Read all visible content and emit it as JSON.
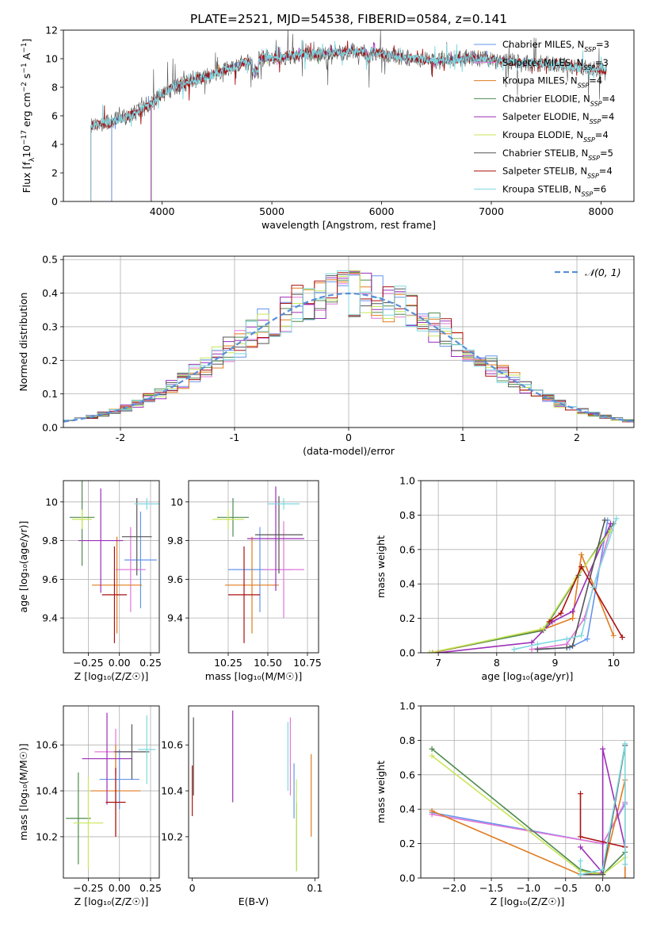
{
  "figure": {
    "title": "PLATE=2521, MJD=54538, FIBERID=0584, z=0.141"
  },
  "colors": {
    "Chabrier MILES": "#6495ed",
    "Salpeter MILES": "#e078d8",
    "Kroupa MILES": "#e07b20",
    "Chabrier ELODIE": "#4f8a4f",
    "Salpeter ELODIE": "#9b2fb8",
    "Kroupa ELODIE": "#c8e65a",
    "Chabrier STELIB": "#555555",
    "Salpeter STELIB": "#aa1111",
    "Kroupa STELIB": "#7ed8e0",
    "normal_curve": "#5b8fd8",
    "grid": "#b0b0b0"
  },
  "chart_data": [
    {
      "id": "spectrum",
      "type": "line",
      "xlabel": "wavelength [Angstrom, rest frame]",
      "ylabel_parts": [
        "Flux [f",
        "λ",
        "10",
        "−17",
        " erg cm",
        "−2",
        " s",
        "−1",
        " A",
        "−1",
        "]"
      ],
      "xlim": [
        3100,
        8300
      ],
      "ylim": [
        0,
        12
      ],
      "xticks": [
        4000,
        5000,
        6000,
        7000,
        8000
      ],
      "yticks": [
        0,
        2,
        4,
        6,
        8,
        10,
        12
      ],
      "grid": false,
      "legend_position": "top-right",
      "legend": [
        {
          "name": "Chabrier MILES",
          "nssp": "3"
        },
        {
          "name": "Salpeter MILES",
          "nssp": "3"
        },
        {
          "name": "Kroupa MILES",
          "nssp": "4"
        },
        {
          "name": "Chabrier ELODIE",
          "nssp": "4"
        },
        {
          "name": "Salpeter ELODIE",
          "nssp": "4"
        },
        {
          "name": "Kroupa ELODIE",
          "nssp": "4"
        },
        {
          "name": "Chabrier STELIB",
          "nssp": "5"
        },
        {
          "name": "Salpeter STELIB",
          "nssp": "4"
        },
        {
          "name": "Kroupa STELIB",
          "nssp": "6"
        }
      ],
      "continuum": {
        "x": [
          3350,
          3500,
          3700,
          3900,
          4000,
          4100,
          4300,
          4500,
          4700,
          4900,
          5100,
          5300,
          5500,
          5700,
          5900,
          6100,
          6300,
          6500,
          6700,
          6900,
          7100,
          7300,
          7500,
          7700,
          7900,
          8050
        ],
        "y": [
          5.3,
          5.5,
          6.0,
          6.8,
          7.5,
          8.0,
          8.5,
          9.0,
          9.6,
          10.0,
          10.1,
          10.3,
          10.4,
          10.5,
          10.5,
          10.2,
          10.0,
          9.8,
          10.0,
          10.0,
          9.9,
          9.7,
          9.7,
          9.5,
          9.3,
          9.2
        ]
      }
    },
    {
      "id": "residual_hist",
      "type": "bar",
      "xlabel": "(data-model)/error",
      "ylabel": "Normed distribution",
      "xlim": [
        -2.5,
        2.5
      ],
      "ylim": [
        0,
        0.51
      ],
      "xticks": [
        -2,
        -1,
        0,
        1,
        2
      ],
      "yticks": [
        0.0,
        0.1,
        0.2,
        0.3,
        0.4,
        0.5
      ],
      "grid": true,
      "legend_position": "top-right",
      "legend_label": "𝒩(0, 1)",
      "bin_width": 0.1
    },
    {
      "id": "age_vs_Z",
      "type": "scatter",
      "xlabel": "Z [log₁₀(Z/Z☉)]",
      "ylabel": "age  [log₁₀(age/yr)]",
      "xlim": [
        -0.45,
        0.32
      ],
      "ylim": [
        9.22,
        10.11
      ],
      "xticks": [
        -0.25,
        0.0,
        0.25
      ],
      "xticklabels": [
        "−0.25",
        "0.00",
        "0.25"
      ],
      "yticks": [
        9.4,
        9.6,
        9.8,
        10.0
      ],
      "grid": true,
      "series": [
        {
          "name": "Chabrier MILES",
          "x": 0.17,
          "xerr": 0.13,
          "y": 9.7,
          "yerr": 0.25
        },
        {
          "name": "Salpeter MILES",
          "x": 0.09,
          "xerr": 0.12,
          "y": 9.65,
          "yerr": 0.22
        },
        {
          "name": "Kroupa MILES",
          "x": -0.02,
          "xerr": 0.2,
          "y": 9.57,
          "yerr": 0.25
        },
        {
          "name": "Chabrier ELODIE",
          "x": -0.3,
          "xerr": 0.1,
          "y": 9.92,
          "yerr": 0.25
        },
        {
          "name": "Salpeter ELODIE",
          "x": -0.15,
          "xerr": 0.18,
          "y": 9.8,
          "yerr": 0.27
        },
        {
          "name": "Kroupa ELODIE",
          "x": -0.3,
          "xerr": 0.08,
          "y": 9.91,
          "yerr": 0.05
        },
        {
          "name": "Chabrier STELIB",
          "x": 0.14,
          "xerr": 0.12,
          "y": 9.82,
          "yerr": 0.2
        },
        {
          "name": "Salpeter STELIB",
          "x": -0.04,
          "xerr": 0.1,
          "y": 9.52,
          "yerr": 0.25
        },
        {
          "name": "Kroupa STELIB",
          "x": 0.22,
          "xerr": 0.1,
          "y": 9.99,
          "yerr": 0.03
        }
      ]
    },
    {
      "id": "age_vs_mass",
      "type": "scatter",
      "xlabel": "mass [log₁₀(M/M☉)]",
      "xlim": [
        10.0,
        10.82
      ],
      "ylim": [
        9.22,
        10.11
      ],
      "xticks": [
        10.25,
        10.5,
        10.75
      ],
      "xticklabels": [
        "10.25",
        "10.50",
        "10.75"
      ],
      "yticks": [
        9.4,
        9.6,
        9.8,
        10.0
      ],
      "grid": true,
      "series": [
        {
          "name": "Chabrier MILES",
          "x": 10.45,
          "xerr": 0.2,
          "y": 9.65,
          "yerr": 0.22
        },
        {
          "name": "Salpeter MILES",
          "x": 10.6,
          "xerr": 0.13,
          "y": 9.65,
          "yerr": 0.25
        },
        {
          "name": "Kroupa MILES",
          "x": 10.4,
          "xerr": 0.17,
          "y": 9.57,
          "yerr": 0.25
        },
        {
          "name": "Chabrier ELODIE",
          "x": 10.28,
          "xerr": 0.1,
          "y": 9.92,
          "yerr": 0.1
        },
        {
          "name": "Salpeter ELODIE",
          "x": 10.55,
          "xerr": 0.18,
          "y": 9.81,
          "yerr": 0.27
        },
        {
          "name": "Kroupa ELODIE",
          "x": 10.25,
          "xerr": 0.1,
          "y": 9.91,
          "yerr": 0.05
        },
        {
          "name": "Chabrier STELIB",
          "x": 10.57,
          "xerr": 0.15,
          "y": 9.83,
          "yerr": 0.2
        },
        {
          "name": "Salpeter STELIB",
          "x": 10.35,
          "xerr": 0.1,
          "y": 9.52,
          "yerr": 0.25
        },
        {
          "name": "Kroupa STELIB",
          "x": 10.6,
          "xerr": 0.1,
          "y": 9.99,
          "yerr": 0.03
        }
      ]
    },
    {
      "id": "massweight_vs_age",
      "type": "line",
      "xlabel": "age  [log₁₀(age/yr)]",
      "ylabel": "mass weight",
      "xlim": [
        6.7,
        10.35
      ],
      "ylim": [
        0,
        1.0
      ],
      "xticks": [
        7,
        8,
        9,
        10
      ],
      "yticks": [
        0.0,
        0.2,
        0.4,
        0.6,
        0.8,
        1.0
      ],
      "grid": true,
      "series": [
        {
          "name": "Chabrier MILES",
          "x": [
            8.7,
            9.25,
            9.55,
            9.9
          ],
          "y": [
            0.02,
            0.03,
            0.08,
            0.77
          ]
        },
        {
          "name": "Salpeter MILES",
          "x": [
            8.6,
            9.2,
            9.5,
            9.95
          ],
          "y": [
            0.02,
            0.05,
            0.2,
            0.72
          ]
        },
        {
          "name": "Kroupa MILES",
          "x": [
            6.9,
            8.75,
            9.3,
            9.45,
            10.0
          ],
          "y": [
            0.0,
            0.13,
            0.2,
            0.57,
            0.1
          ]
        },
        {
          "name": "Chabrier ELODIE",
          "x": [
            6.85,
            8.8,
            9.4,
            10.0
          ],
          "y": [
            0.0,
            0.13,
            0.45,
            0.75
          ]
        },
        {
          "name": "Salpeter ELODIE",
          "x": [
            7.0,
            8.6,
            8.95,
            9.3,
            9.95
          ],
          "y": [
            0.0,
            0.06,
            0.18,
            0.24,
            0.75
          ]
        },
        {
          "name": "Kroupa ELODIE",
          "x": [
            6.85,
            8.8,
            9.35,
            9.95
          ],
          "y": [
            0.0,
            0.14,
            0.43,
            0.71
          ]
        },
        {
          "name": "Chabrier STELIB",
          "x": [
            8.7,
            9.2,
            9.3,
            9.85
          ],
          "y": [
            0.02,
            0.03,
            0.04,
            0.77
          ]
        },
        {
          "name": "Salpeter STELIB",
          "x": [
            8.9,
            9.1,
            9.45,
            10.15
          ],
          "y": [
            0.18,
            0.23,
            0.5,
            0.09
          ]
        },
        {
          "name": "Kroupa STELIB",
          "x": [
            8.3,
            8.7,
            9.2,
            9.45,
            9.65,
            10.05
          ],
          "y": [
            0.02,
            0.05,
            0.08,
            0.1,
            0.38,
            0.78
          ]
        }
      ]
    },
    {
      "id": "mass_vs_Z",
      "type": "scatter",
      "xlabel": "Z [log₁₀(Z/Z☉)]",
      "ylabel": "mass [log₁₀(M/M☉)]",
      "xlim": [
        -0.45,
        0.32
      ],
      "ylim": [
        10.02,
        10.77
      ],
      "xticks": [
        -0.25,
        0.0,
        0.25
      ],
      "xticklabels": [
        "−0.25",
        "0.00",
        "0.25"
      ],
      "yticks": [
        10.2,
        10.4,
        10.6
      ],
      "grid": true,
      "series": [
        {
          "name": "Chabrier MILES",
          "x": 0.0,
          "xerr": 0.16,
          "y": 10.45,
          "yerr": 0.13
        },
        {
          "name": "Salpeter MILES",
          "x": -0.03,
          "xerr": 0.17,
          "y": 10.57,
          "yerr": 0.1
        },
        {
          "name": "Kroupa MILES",
          "x": -0.03,
          "xerr": 0.2,
          "y": 10.4,
          "yerr": 0.2
        },
        {
          "name": "Chabrier ELODIE",
          "x": -0.33,
          "xerr": 0.1,
          "y": 10.28,
          "yerr": 0.2
        },
        {
          "name": "Salpeter ELODIE",
          "x": -0.1,
          "xerr": 0.2,
          "y": 10.54,
          "yerr": 0.2
        },
        {
          "name": "Kroupa ELODIE",
          "x": -0.25,
          "xerr": 0.12,
          "y": 10.26,
          "yerr": 0.2
        },
        {
          "name": "Chabrier STELIB",
          "x": 0.1,
          "xerr": 0.14,
          "y": 10.57,
          "yerr": 0.12
        },
        {
          "name": "Salpeter STELIB",
          "x": -0.03,
          "xerr": 0.08,
          "y": 10.35,
          "yerr": 0.15
        },
        {
          "name": "Kroupa STELIB",
          "x": 0.22,
          "xerr": 0.07,
          "y": 10.58,
          "yerr": 0.15
        }
      ]
    },
    {
      "id": "mass_vs_ebv",
      "type": "scatter",
      "xlabel": "E(B-V)",
      "xlim": [
        -0.003,
        0.103
      ],
      "ylim": [
        10.02,
        10.77
      ],
      "xticks": [
        0.0,
        0.1
      ],
      "yticks": [
        10.2,
        10.4,
        10.6
      ],
      "grid": false,
      "series": [
        {
          "name": "Chabrier MILES",
          "x": 0.083,
          "y": 10.4,
          "yerr": 0.12
        },
        {
          "name": "Salpeter MILES",
          "x": 0.08,
          "y": 10.55,
          "yerr": 0.17
        },
        {
          "name": "Kroupa MILES",
          "x": 0.097,
          "y": 10.38,
          "yerr": 0.18
        },
        {
          "name": "Chabrier ELODIE",
          "x": 0.085,
          "y": 10.2,
          "yerr": 0.15
        },
        {
          "name": "Salpeter ELODIE",
          "x": 0.033,
          "y": 10.55,
          "yerr": 0.2
        },
        {
          "name": "Kroupa ELODIE",
          "x": 0.085,
          "y": 10.25,
          "yerr": 0.2
        },
        {
          "name": "Chabrier STELIB",
          "x": 0.001,
          "y": 10.55,
          "yerr": 0.17
        },
        {
          "name": "Salpeter STELIB",
          "x": 0.0,
          "y": 10.4,
          "yerr": 0.11
        },
        {
          "name": "Kroupa STELIB",
          "x": 0.078,
          "y": 10.55,
          "yerr": 0.15
        }
      ]
    },
    {
      "id": "massweight_vs_Z",
      "type": "line",
      "xlabel": "Z [log₁₀(Z/Z☉)]",
      "ylabel": "mass weight",
      "xlim": [
        -2.45,
        0.42
      ],
      "ylim": [
        0,
        1.0
      ],
      "xticks": [
        -2.0,
        -1.5,
        -1.0,
        -0.5,
        0.0
      ],
      "xticklabels": [
        "−2.0",
        "−1.5",
        "−1.0",
        "−0.5",
        "0.0"
      ],
      "yticks": [
        0.0,
        0.2,
        0.4,
        0.6,
        0.8,
        1.0
      ],
      "grid": true,
      "series": [
        {
          "name": "Chabrier MILES",
          "x": [
            -2.3,
            0.0,
            0.3
          ],
          "y": [
            0.38,
            0.2,
            0.43
          ]
        },
        {
          "name": "Salpeter MILES",
          "x": [
            -2.3,
            0.0,
            0.3
          ],
          "y": [
            0.37,
            0.2,
            0.44
          ]
        },
        {
          "name": "Kroupa MILES",
          "x": [
            -2.3,
            -0.3,
            0.0,
            0.3,
            0.3
          ],
          "y": [
            0.39,
            0.02,
            0.03,
            0.57,
            0.0
          ]
        },
        {
          "name": "Chabrier ELODIE",
          "x": [
            -2.3,
            -0.3,
            0.0,
            0.3
          ],
          "y": [
            0.75,
            0.05,
            0.02,
            0.15
          ]
        },
        {
          "name": "Salpeter ELODIE",
          "x": [
            -0.3,
            0.0,
            0.0,
            0.3
          ],
          "y": [
            0.18,
            0.03,
            0.75,
            0.18
          ]
        },
        {
          "name": "Kroupa ELODIE",
          "x": [
            -2.3,
            -0.3,
            0.0,
            0.3
          ],
          "y": [
            0.71,
            0.04,
            0.02,
            0.12
          ]
        },
        {
          "name": "Chabrier STELIB",
          "x": [
            -0.3,
            0.0,
            0.3
          ],
          "y": [
            0.02,
            0.02,
            0.77
          ]
        },
        {
          "name": "Salpeter STELIB",
          "x": [
            -0.3,
            -0.3,
            0.3
          ],
          "y": [
            0.49,
            0.24,
            0.18
          ]
        },
        {
          "name": "Kroupa STELIB",
          "x": [
            -0.3,
            -0.3,
            0.0,
            0.3,
            0.3
          ],
          "y": [
            0.1,
            0.02,
            0.05,
            0.78,
            0.08
          ]
        }
      ]
    }
  ]
}
